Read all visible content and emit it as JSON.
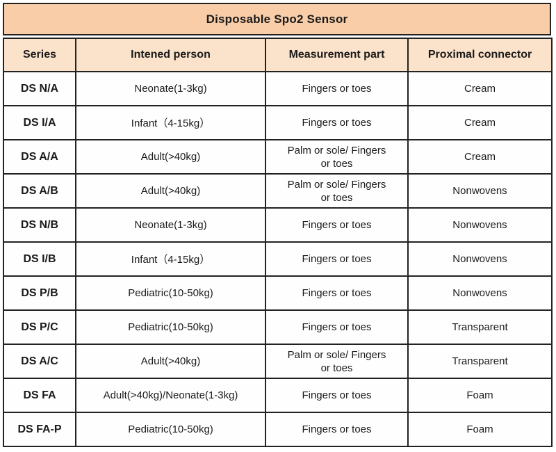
{
  "table": {
    "title": "Disposable Spo2 Sensor",
    "columns": [
      "Series",
      "Intened person",
      "Measurement part",
      "Proximal connector"
    ],
    "rows": [
      {
        "series": "DS N/A",
        "person": "Neonate(1-3kg)",
        "part": "Fingers or toes",
        "connector": "Cream"
      },
      {
        "series": "DS I/A",
        "person": "Infant（4-15kg）",
        "part": "Fingers or toes",
        "connector": "Cream"
      },
      {
        "series": "DS A/A",
        "person": "Adult(>40kg)",
        "part": "Palm or sole/   Fingers\nor toes",
        "connector": "Cream"
      },
      {
        "series": "DS A/B",
        "person": "Adult(>40kg)",
        "part": "Palm or sole/   Fingers\nor toes",
        "connector": "Nonwovens"
      },
      {
        "series": "DS N/B",
        "person": "Neonate(1-3kg)",
        "part": "Fingers or toes",
        "connector": "Nonwovens"
      },
      {
        "series": "DS I/B",
        "person": "Infant（4-15kg）",
        "part": "Fingers or toes",
        "connector": "Nonwovens"
      },
      {
        "series": "DS P/B",
        "person": "Pediatric(10-50kg)",
        "part": "Fingers or toes",
        "connector": "Nonwovens"
      },
      {
        "series": "DS P/C",
        "person": "Pediatric(10-50kg)",
        "part": "Fingers or toes",
        "connector": "Transparent"
      },
      {
        "series": "DS A/C",
        "person": "Adult(>40kg)",
        "part": "Palm or sole/   Fingers\nor toes",
        "connector": "Transparent"
      },
      {
        "series": "DS FA",
        "person": "Adult(>40kg)/Neonate(1-3kg)",
        "part": "Fingers or toes",
        "connector": "Foam"
      },
      {
        "series": "DS FA-P",
        "person": "Pediatric(10-50kg)",
        "part": "Fingers or toes",
        "connector": "Foam"
      }
    ],
    "colors": {
      "title_bg": "#f8cda8",
      "header_bg": "#fbe2cb",
      "border": "#222222",
      "text": "#1a1a1a",
      "cell_bg": "#fefefe"
    }
  }
}
